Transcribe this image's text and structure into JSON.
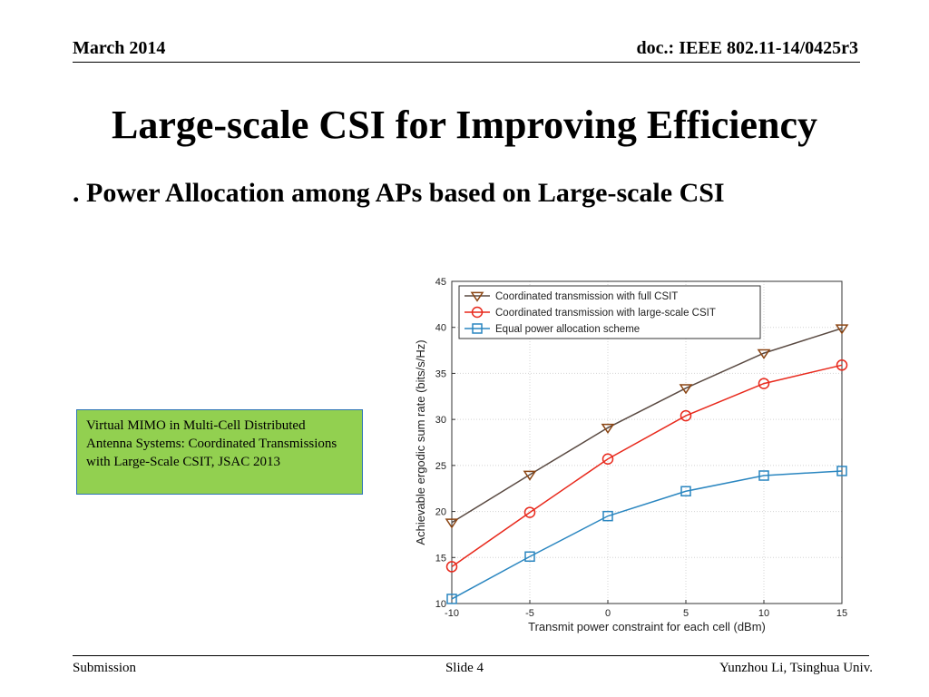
{
  "header": {
    "date": "March 2014",
    "doc": "doc.: IEEE 802.11-14/0425r3"
  },
  "slide": {
    "title": "Large-scale CSI for Improving Efficiency",
    "subtitle": ". Power Allocation among APs based on Large-scale CSI",
    "reference": "Virtual MIMO in Multi-Cell Distributed Antenna Systems: Coordinated Transmissions with Large-Scale CSIT, JSAC 2013"
  },
  "footer": {
    "left": "Submission",
    "center": "Slide 4",
    "right": "Yunzhou Li, Tsinghua Univ."
  },
  "chart_data": {
    "type": "line",
    "title": "",
    "xlabel": "Transmit power constraint for each cell (dBm)",
    "ylabel": "Achievable ergodic sum rate (bits/s/Hz)",
    "x": [
      -10,
      -5,
      0,
      5,
      10,
      15
    ],
    "xlim": [
      -10,
      15
    ],
    "ylim": [
      10,
      45
    ],
    "xticks": [
      -10,
      -5,
      0,
      5,
      10,
      15
    ],
    "yticks": [
      10,
      15,
      20,
      25,
      30,
      35,
      40,
      45
    ],
    "grid": true,
    "legend_position": "top-left",
    "series": [
      {
        "name": "Coordinated transmission with full CSIT",
        "marker": "triangle-down",
        "color": "#5a4a42",
        "marker_color": "#8b4513",
        "values": [
          18.8,
          24.0,
          29.1,
          33.4,
          37.2,
          39.9
        ]
      },
      {
        "name": "Coordinated transmission with large-scale CSIT",
        "marker": "circle",
        "color": "#e8291c",
        "marker_color": "#e8291c",
        "values": [
          14.0,
          19.9,
          25.7,
          30.4,
          33.9,
          35.9
        ]
      },
      {
        "name": "Equal power allocation scheme",
        "marker": "square",
        "color": "#2a86c0",
        "marker_color": "#2a86c0",
        "values": [
          10.5,
          15.1,
          19.5,
          22.2,
          23.9,
          24.4
        ]
      }
    ]
  }
}
